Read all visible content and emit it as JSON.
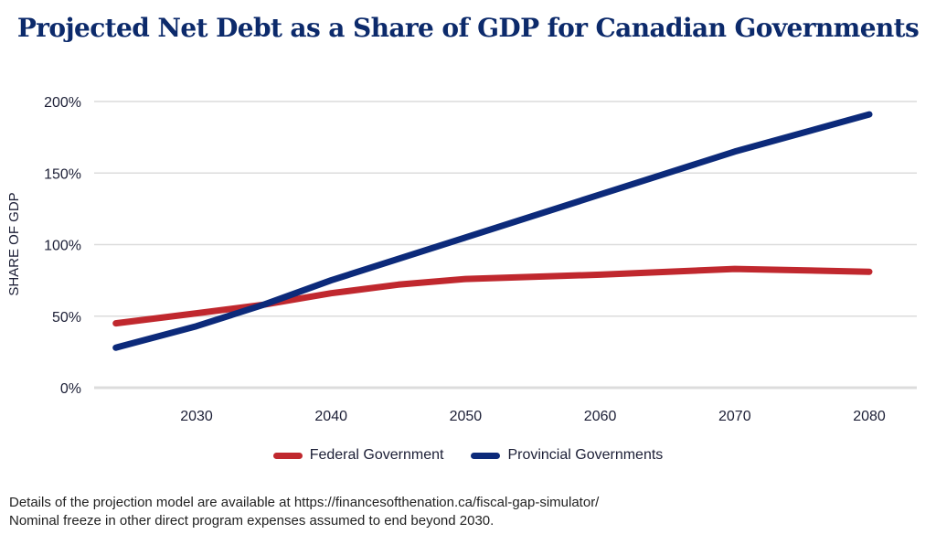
{
  "chart_data": {
    "type": "line",
    "title": "Projected Net Debt as a Share of GDP for Canadian Governments",
    "xlabel": "",
    "ylabel": "SHARE OF GDP",
    "xlim": [
      2024,
      2080
    ],
    "ylim": [
      0,
      200
    ],
    "x_ticks": [
      2030,
      2040,
      2050,
      2060,
      2070,
      2080
    ],
    "y_ticks": [
      0,
      50,
      100,
      150,
      200
    ],
    "y_tick_labels": [
      "0%",
      "50%",
      "100%",
      "150%",
      "200%"
    ],
    "grid": true,
    "legend_position": "bottom-center",
    "series": [
      {
        "name": "Federal Government",
        "color": "#c0282e",
        "x": [
          2024,
          2030,
          2035,
          2040,
          2045,
          2050,
          2060,
          2070,
          2080
        ],
        "values": [
          45,
          52,
          58,
          66,
          72,
          76,
          79,
          83,
          81
        ]
      },
      {
        "name": "Provincial Governments",
        "color": "#0c2a7a",
        "x": [
          2024,
          2030,
          2035,
          2040,
          2050,
          2060,
          2070,
          2080
        ],
        "values": [
          28,
          43,
          58,
          75,
          105,
          135,
          165,
          191
        ]
      }
    ]
  },
  "notes": [
    "Details of the projection model are available at https://financesofthenation.ca/fiscal-gap-simulator/",
    "Nominal freeze in other direct program expenses assumed to end beyond 2030."
  ]
}
